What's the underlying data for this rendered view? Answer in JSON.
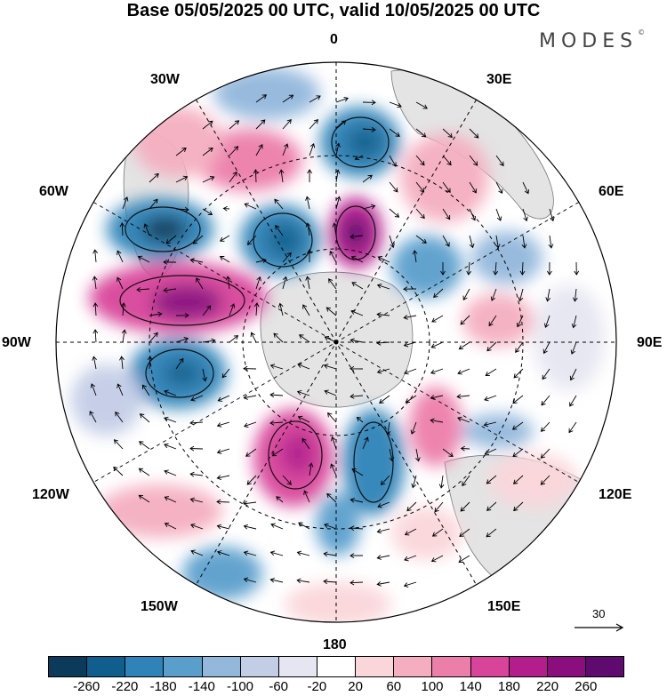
{
  "title": "Base 05/05/2025 00 UTC, valid 10/05/2025 00 UTC",
  "logo": "MODES",
  "logo_mark": "©",
  "longitude_labels": {
    "lon_0": "0",
    "lon_30e": "30E",
    "lon_60e": "60E",
    "lon_90e": "90E",
    "lon_120e": "120E",
    "lon_150e": "150E",
    "lon_180": "180",
    "lon_150w": "150W",
    "lon_120w": "120W",
    "lon_90w": "90W",
    "lon_60w": "60W",
    "lon_30w": "30W"
  },
  "reference_vector": "30",
  "colorbar": {
    "colors": [
      "#0b3a5a",
      "#0f5e8e",
      "#2f83b8",
      "#5a9fcc",
      "#93b8dc",
      "#c3cde6",
      "#e6e6f2",
      "#ffffff",
      "#fad6da",
      "#f4aec0",
      "#ec7eaa",
      "#d8449a",
      "#b41d8c",
      "#8a0e7e",
      "#5e0a6e"
    ],
    "labels": [
      "-260",
      "-220",
      "-180",
      "-140",
      "-100",
      "-60",
      "-20",
      "20",
      "60",
      "100",
      "140",
      "180",
      "220",
      "260"
    ]
  }
}
